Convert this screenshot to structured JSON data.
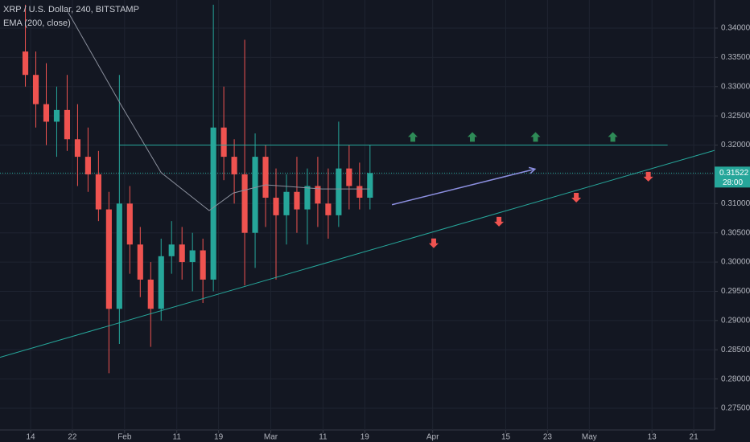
{
  "chart_data": {
    "type": "candlestick",
    "title": "XRP / U.S. Dollar, 240, BITSTAMP",
    "x": [
      -1,
      1,
      3,
      5,
      7,
      9,
      11,
      13,
      15,
      17,
      19,
      21,
      23,
      25,
      27,
      29,
      31,
      33,
      35,
      37,
      39,
      41,
      43,
      45,
      47,
      49,
      51,
      53,
      55,
      57,
      59,
      61,
      63,
      65
    ],
    "open": [
      0.336,
      0.332,
      0.327,
      0.324,
      0.326,
      0.321,
      0.318,
      0.315,
      0.309,
      0.292,
      0.31,
      0.303,
      0.297,
      0.292,
      0.301,
      0.303,
      0.3,
      0.302,
      0.297,
      0.323,
      0.318,
      0.315,
      0.305,
      0.318,
      0.311,
      0.308,
      0.312,
      0.309,
      0.313,
      0.31,
      0.308,
      0.316,
      0.313,
      0.311
    ],
    "high": [
      0.344,
      0.336,
      0.334,
      0.33,
      0.332,
      0.327,
      0.323,
      0.319,
      0.312,
      0.332,
      0.313,
      0.306,
      0.3,
      0.304,
      0.307,
      0.306,
      0.305,
      0.304,
      0.344,
      0.33,
      0.321,
      0.338,
      0.322,
      0.32,
      0.316,
      0.315,
      0.318,
      0.316,
      0.318,
      0.316,
      0.324,
      0.32,
      0.317,
      0.32
    ],
    "low": [
      0.33,
      0.323,
      0.32,
      0.318,
      0.319,
      0.313,
      0.312,
      0.307,
      0.281,
      0.286,
      0.298,
      0.294,
      0.2855,
      0.29,
      0.298,
      0.297,
      0.295,
      0.293,
      0.295,
      0.314,
      0.31,
      0.296,
      0.299,
      0.306,
      0.297,
      0.303,
      0.305,
      0.303,
      0.306,
      0.304,
      0.306,
      0.309,
      0.309,
      0.309
    ],
    "close": [
      0.332,
      0.327,
      0.324,
      0.326,
      0.321,
      0.318,
      0.315,
      0.309,
      0.292,
      0.31,
      0.303,
      0.297,
      0.292,
      0.301,
      0.303,
      0.3,
      0.302,
      0.297,
      0.323,
      0.318,
      0.315,
      0.305,
      0.318,
      0.311,
      0.308,
      0.312,
      0.309,
      0.313,
      0.31,
      0.308,
      0.316,
      0.313,
      0.311,
      0.31522
    ],
    "up_color": "#26a69a",
    "down_color": "#ef5350",
    "series": [
      {
        "name": "EMA (200, close)",
        "color": "#8a8f9c",
        "x": [
          7.2,
          17.3,
          25,
          34.2,
          38.8,
          45,
          55.8,
          65
        ],
        "values": [
          0.3427,
          0.3269,
          0.3153,
          0.3088,
          0.3118,
          0.3132,
          0.3125,
          0.3125
        ]
      }
    ],
    "lines": [
      {
        "color": "#26a69a",
        "x": [
          17,
          122
        ],
        "y": [
          0.32,
          0.32
        ]
      },
      {
        "color": "#26a69a",
        "x": [
          -5.86,
          130.99
        ],
        "y": [
          0.2837,
          0.3191
        ]
      },
      {
        "color": "#8c8fe0",
        "x": [
          69.2,
          96.6
        ],
        "y": [
          0.3098,
          0.3159
        ]
      }
    ],
    "up_signals": {
      "color": "#2e8b57",
      "x": [
        73.2,
        84.6,
        96.7,
        111.5
      ],
      "y": [
        0.3214,
        0.3214,
        0.3214,
        0.3214
      ]
    },
    "down_signals": {
      "color": "#ef5350",
      "x": [
        77.2,
        89.7,
        104.5,
        118.3
      ],
      "y": [
        0.3032,
        0.3069,
        0.311,
        0.3146
      ]
    },
    "last_price": 0.31522,
    "countdown": "28:00",
    "xlim": [
      -5.86,
      130.99
    ],
    "ylim": [
      0.27129,
      0.34481
    ],
    "xticks": [
      {
        "value": 0,
        "label": "14"
      },
      {
        "value": 8,
        "label": "22"
      },
      {
        "value": 18,
        "label": "Feb"
      },
      {
        "value": 28,
        "label": "11"
      },
      {
        "value": 36,
        "label": "19"
      },
      {
        "value": 46,
        "label": "Mar"
      },
      {
        "value": 56,
        "label": "11"
      },
      {
        "value": 64,
        "label": "19"
      },
      {
        "value": 77,
        "label": "Apr"
      },
      {
        "value": 91,
        "label": "15"
      },
      {
        "value": 99,
        "label": "23"
      },
      {
        "value": 107,
        "label": "May"
      },
      {
        "value": 119,
        "label": "13"
      },
      {
        "value": 127,
        "label": "21"
      }
    ],
    "yticks": [
      {
        "value": 0.34,
        "label": "0.34000"
      },
      {
        "value": 0.335,
        "label": "0.33500"
      },
      {
        "value": 0.33,
        "label": "0.33000"
      },
      {
        "value": 0.325,
        "label": "0.32500"
      },
      {
        "value": 0.32,
        "label": "0.32000"
      },
      {
        "value": 0.315,
        "label": "0.31500"
      },
      {
        "value": 0.31,
        "label": "0.31000"
      },
      {
        "value": 0.305,
        "label": "0.30500"
      },
      {
        "value": 0.3,
        "label": "0.30000"
      },
      {
        "value": 0.295,
        "label": "0.29500"
      },
      {
        "value": 0.29,
        "label": "0.29000"
      },
      {
        "value": 0.285,
        "label": "0.28500"
      },
      {
        "value": 0.28,
        "label": "0.28000"
      },
      {
        "value": 0.275,
        "label": "0.27500"
      }
    ],
    "grid": true
  }
}
